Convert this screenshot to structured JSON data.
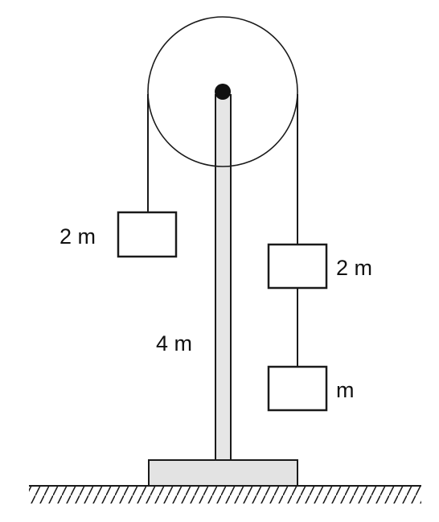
{
  "labels": {
    "left_block": "2 m",
    "pole": "4 m",
    "right_upper_block": "2 m",
    "right_lower_block": "m"
  },
  "colors": {
    "stroke": "#1a1a1a",
    "pole_fill": "#e6e6e6",
    "base_fill": "#e3e3e3",
    "axle": "#111111"
  }
}
